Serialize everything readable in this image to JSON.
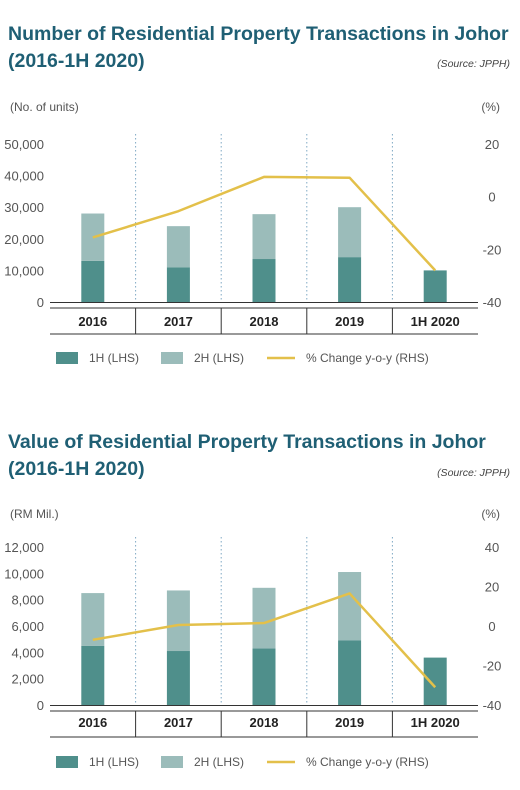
{
  "colors": {
    "h1": "#4f8f8b",
    "h2": "#9bbcba",
    "line": "#e3c04a",
    "title": "#1f5f74",
    "grid": "#7fa9c4"
  },
  "legend": {
    "h1": "1H (LHS)",
    "h2": "2H (LHS)",
    "line": "% Change y-o-y (RHS)"
  },
  "chart_data": [
    {
      "type": "bar",
      "title_line1": "Number of Residential Property Transactions in Johor",
      "title_line2": "(2016-1H 2020)",
      "source": "(Source: JPPH)",
      "ylabel": "(No. of units)",
      "y2label": "(%)",
      "categories": [
        "2016",
        "2017",
        "2018",
        "2019",
        "1H 2020"
      ],
      "ylim": [
        0,
        50000
      ],
      "yticks": [
        "50,000",
        "40,000",
        "30,000",
        "20,000",
        "10,000",
        "0"
      ],
      "y2lim": [
        -40,
        20
      ],
      "y2ticks": [
        "20",
        "0",
        "-20",
        "-40"
      ],
      "stacked": true,
      "series": [
        {
          "name": "1H (LHS)",
          "values": [
            13000,
            11000,
            13600,
            14200,
            10000
          ]
        },
        {
          "name": "2H (LHS)",
          "values": [
            15000,
            13000,
            14200,
            15800,
            0
          ]
        },
        {
          "name": "% Change y-o-y (RHS)",
          "axis": "right",
          "type": "line",
          "values": [
            -15.5,
            -5.5,
            7.5,
            7.2,
            -28
          ]
        }
      ],
      "legend_position": "bottom"
    },
    {
      "type": "bar",
      "title_line1": "Value of Residential Property Transactions in Johor",
      "title_line2": "(2016-1H 2020)",
      "source": "(Source: JPPH)",
      "ylabel": "(RM Mil.)",
      "y2label": "(%)",
      "categories": [
        "2016",
        "2017",
        "2018",
        "2019",
        "1H 2020"
      ],
      "ylim": [
        0,
        12000
      ],
      "yticks": [
        "12,000",
        "10,000",
        "8,000",
        "6,000",
        "4,000",
        "2,000",
        "0"
      ],
      "y2lim": [
        -40,
        40
      ],
      "y2ticks": [
        "40",
        "20",
        "0",
        "-20",
        "-40"
      ],
      "stacked": true,
      "series": [
        {
          "name": "1H (LHS)",
          "values": [
            4500,
            4100,
            4300,
            4900,
            3600
          ]
        },
        {
          "name": "2H (LHS)",
          "values": [
            4000,
            4600,
            4600,
            5200,
            0
          ]
        },
        {
          "name": "% Change y-o-y (RHS)",
          "axis": "right",
          "type": "line",
          "values": [
            -7,
            0.5,
            1.5,
            16.5,
            -31
          ]
        }
      ],
      "legend_position": "bottom"
    }
  ]
}
